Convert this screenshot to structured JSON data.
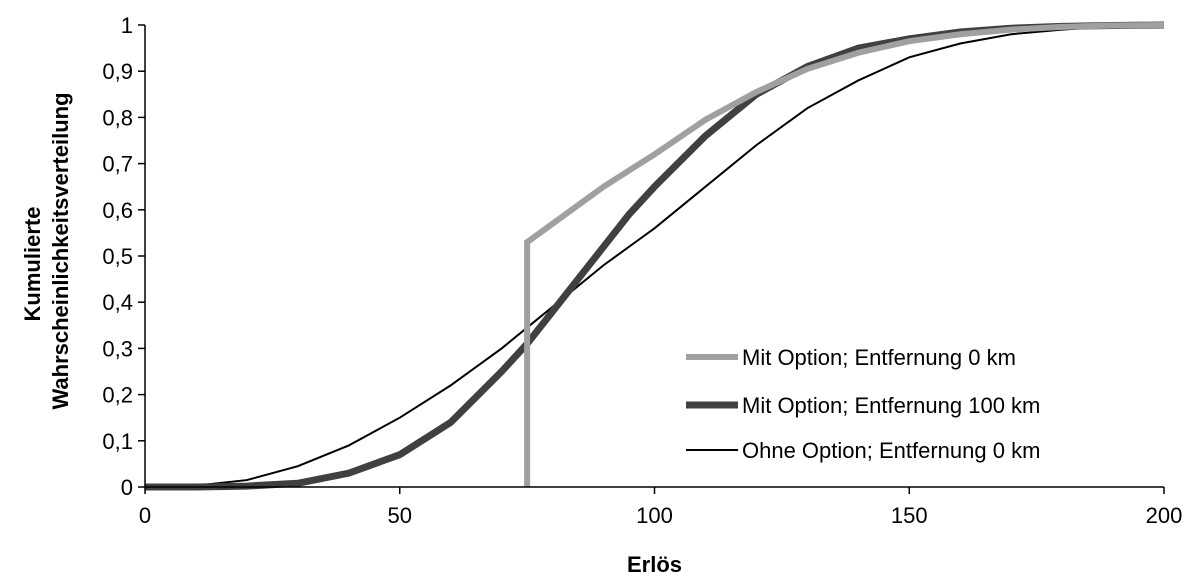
{
  "chart_data": {
    "type": "line",
    "xlabel": "Erlös",
    "ylabel": [
      "Kumulierte",
      "Wahrscheinlichkeitsverteilung"
    ],
    "xlim": [
      0,
      200
    ],
    "ylim": [
      0,
      1
    ],
    "x_ticks": [
      "0",
      "50",
      "100",
      "150",
      "200"
    ],
    "y_ticks": [
      "0",
      "0,1",
      "0,2",
      "0,3",
      "0,4",
      "0,5",
      "0,6",
      "0,7",
      "0,8",
      "0,9",
      "1"
    ],
    "grid": false,
    "legend_position": "bottom-right",
    "series": [
      {
        "name": "Mit Option; Entfernung 0 km",
        "color": "#a0a0a0",
        "style": "thick-light-gray",
        "x": [
          75,
          75,
          80,
          90,
          100,
          110,
          120,
          130,
          140,
          150,
          160,
          170,
          180,
          190,
          200
        ],
        "y": [
          0,
          0.53,
          0.57,
          0.65,
          0.72,
          0.795,
          0.855,
          0.905,
          0.94,
          0.965,
          0.98,
          0.99,
          0.996,
          0.999,
          1.0
        ]
      },
      {
        "name": "Mit Option; Entfernung 100 km",
        "color": "#404040",
        "style": "thick-dark-gray",
        "x": [
          0,
          10,
          20,
          30,
          40,
          50,
          60,
          70,
          75,
          80,
          85,
          90,
          95,
          100,
          110,
          120,
          130,
          140,
          150,
          160,
          170,
          180,
          190,
          200
        ],
        "y": [
          0,
          0.0,
          0.002,
          0.008,
          0.03,
          0.07,
          0.14,
          0.25,
          0.31,
          0.38,
          0.45,
          0.52,
          0.59,
          0.65,
          0.76,
          0.85,
          0.91,
          0.95,
          0.97,
          0.985,
          0.993,
          0.997,
          0.999,
          1.0
        ]
      },
      {
        "name": "Ohne Option; Entfernung 0 km",
        "color": "#000000",
        "style": "thin-black",
        "x": [
          0,
          10,
          20,
          30,
          40,
          50,
          60,
          70,
          80,
          90,
          100,
          110,
          120,
          130,
          140,
          150,
          160,
          170,
          180,
          190,
          200
        ],
        "y": [
          0,
          0.003,
          0.015,
          0.045,
          0.09,
          0.15,
          0.22,
          0.3,
          0.39,
          0.48,
          0.56,
          0.65,
          0.74,
          0.82,
          0.88,
          0.93,
          0.96,
          0.98,
          0.99,
          0.997,
          1.0
        ]
      }
    ]
  }
}
